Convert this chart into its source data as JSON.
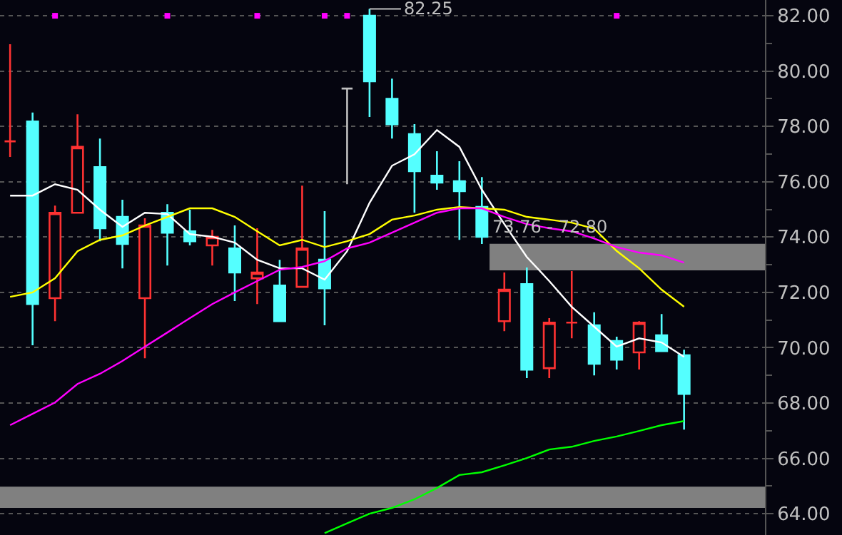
{
  "chart_data": {
    "type": "candlestick",
    "categories": [
      null,
      null,
      null,
      null,
      null,
      null,
      null,
      null,
      null,
      null,
      null,
      null,
      null,
      null,
      null,
      null,
      null,
      null,
      null,
      null,
      null,
      null,
      null,
      null,
      null,
      null,
      null,
      null,
      null,
      null,
      null
    ],
    "ohlc": [
      [
        77.46,
        80.97,
        76.9,
        77.46
      ],
      [
        78.18,
        78.5,
        70.09,
        71.58
      ],
      [
        71.79,
        75.14,
        70.96,
        74.88
      ],
      [
        74.88,
        78.44,
        74.88,
        77.26
      ],
      [
        76.53,
        77.56,
        73.85,
        74.32
      ],
      [
        74.73,
        75.35,
        72.87,
        73.75
      ],
      [
        71.79,
        74.68,
        69.62,
        74.42
      ],
      [
        74.88,
        75.19,
        72.97,
        74.16
      ],
      [
        74.21,
        74.99,
        73.7,
        73.85
      ],
      [
        73.7,
        74.26,
        72.97,
        74.01
      ],
      [
        73.59,
        74.42,
        71.69,
        72.72
      ],
      [
        72.51,
        74.32,
        71.58,
        72.72
      ],
      [
        72.25,
        73.18,
        70.96,
        70.96
      ],
      [
        72.2,
        75.86,
        72.2,
        73.59
      ],
      [
        73.18,
        74.94,
        70.81,
        72.15
      ],
      [
        79.37,
        79.37,
        75.91,
        79.37
      ],
      [
        82.0,
        82.25,
        78.34,
        79.63
      ],
      [
        79.0,
        79.73,
        77.56,
        78.08
      ],
      [
        77.72,
        78.08,
        74.88,
        76.38
      ],
      [
        76.22,
        77.1,
        75.71,
        75.97
      ],
      [
        76.02,
        76.74,
        73.9,
        75.66
      ],
      [
        75.09,
        76.17,
        73.75,
        74.01
      ],
      [
        70.96,
        72.72,
        70.6,
        72.1
      ],
      [
        72.3,
        72.9,
        68.9,
        69.21
      ],
      [
        69.26,
        71.07,
        68.9,
        70.91
      ],
      [
        70.91,
        72.77,
        70.34,
        70.91
      ],
      [
        70.81,
        71.28,
        69.0,
        69.42
      ],
      [
        70.24,
        70.4,
        69.21,
        69.57
      ],
      [
        69.83,
        70.96,
        69.21,
        70.91
      ],
      [
        70.45,
        71.22,
        69.88,
        69.88
      ],
      [
        69.73,
        69.93,
        67.04,
        68.33
      ]
    ],
    "colors": [
      "#ff3232",
      "#54ffff",
      "#ff3232",
      "#ff3232",
      "#54ffff",
      "#54ffff",
      "#ff3232",
      "#54ffff",
      "#54ffff",
      "#ff3232",
      "#54ffff",
      "#ff3232",
      "#54ffff",
      "#ff3232",
      "#54ffff",
      "#c0c0c0",
      "#54ffff",
      "#54ffff",
      "#54ffff",
      "#54ffff",
      "#54ffff",
      "#54ffff",
      "#ff3232",
      "#54ffff",
      "#ff3232",
      "#ff3232",
      "#54ffff",
      "#54ffff",
      "#ff3232",
      "#54ffff",
      "#54ffff"
    ],
    "series": [
      {
        "type": "line",
        "color": "#ffffff",
        "values": [
          75.5,
          75.5,
          75.91,
          75.71,
          74.99,
          74.37,
          74.88,
          74.83,
          74.11,
          74.01,
          73.8,
          73.18,
          72.87,
          72.87,
          72.46,
          73.49,
          75.24,
          76.58,
          76.99,
          77.87,
          77.26,
          75.71,
          74.47,
          73.28,
          72.41,
          71.48,
          70.76,
          70.04,
          70.34,
          70.19,
          69.67
        ]
      },
      {
        "type": "line",
        "color": "#ffff00",
        "values": [
          71.84,
          72.0,
          72.51,
          73.49,
          73.9,
          74.06,
          74.42,
          74.73,
          75.04,
          75.04,
          74.73,
          74.21,
          73.7,
          73.9,
          73.64,
          73.85,
          74.11,
          74.63,
          74.78,
          74.99,
          75.09,
          75.04,
          74.99,
          74.73,
          74.63,
          74.52,
          74.3,
          73.5,
          72.87,
          72.1,
          71.48
        ]
      },
      {
        "type": "line",
        "color": "#ff00ff",
        "values": [
          67.2,
          67.61,
          68.02,
          68.69,
          69.06,
          69.52,
          70.04,
          70.55,
          71.07,
          71.58,
          72.0,
          72.41,
          72.82,
          72.92,
          73.13,
          73.59,
          73.8,
          74.16,
          74.52,
          74.88,
          75.04,
          75.04,
          74.73,
          74.47,
          74.32,
          74.21,
          73.95,
          73.64,
          73.44,
          73.34,
          73.08
        ]
      },
      {
        "type": "line",
        "color": "#00ff00",
        "values": [
          null,
          null,
          null,
          null,
          null,
          null,
          null,
          null,
          null,
          null,
          null,
          null,
          null,
          null,
          63.3,
          63.65,
          64.0,
          64.21,
          64.52,
          64.93,
          65.4,
          65.5,
          65.75,
          66.01,
          66.32,
          66.42,
          66.63,
          66.79,
          66.99,
          67.2,
          67.35
        ]
      },
      {
        "type": "scatter",
        "color": "#ff00ff",
        "marker": "square",
        "values": [
          null,
          null,
          82.0,
          null,
          null,
          null,
          null,
          82.0,
          null,
          null,
          null,
          82.0,
          null,
          null,
          82.0,
          82.0,
          null,
          null,
          null,
          null,
          null,
          null,
          null,
          null,
          null,
          null,
          null,
          82.0,
          null,
          null,
          null
        ]
      }
    ],
    "ylim": [
      63.23,
      82.57
    ],
    "yticks": [
      {
        "value": 64,
        "label": "64.00"
      },
      {
        "value": 66,
        "label": "66.00"
      },
      {
        "value": 68,
        "label": "68.00"
      },
      {
        "value": 70,
        "label": "70.00"
      },
      {
        "value": 72,
        "label": "72.00"
      },
      {
        "value": 74,
        "label": "74.00"
      },
      {
        "value": 76,
        "label": "76.00"
      },
      {
        "value": 78,
        "label": "78.00"
      },
      {
        "value": 80,
        "label": "80.00"
      },
      {
        "value": 82,
        "label": "82.00"
      }
    ],
    "bands": [
      {
        "axis": "y",
        "from": 72.8,
        "to": 73.76,
        "label": "73.76 - 72.80",
        "color": "#808080"
      },
      {
        "axis": "y",
        "from": 64.21,
        "to": 64.98,
        "color": "#808080"
      }
    ],
    "annotations": [
      "82.25"
    ],
    "grid": "y",
    "tick_labels": "y"
  }
}
